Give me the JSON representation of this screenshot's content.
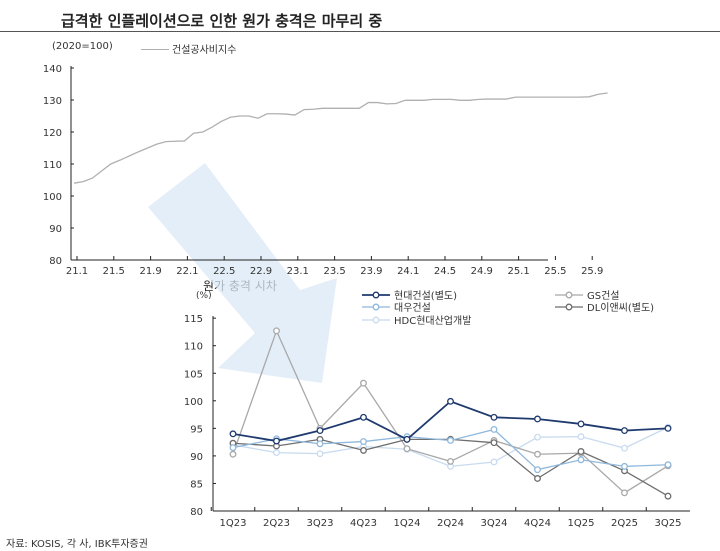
{
  "header": {
    "title": "급격한 인플레이션으로 인한 원가 충격은 마무리 중"
  },
  "source": "자료: KOSIS, 각 사, IBK투자증권",
  "chart_data": [
    {
      "type": "line",
      "ylabel": "(2020=100)",
      "ylim": [
        80,
        140
      ],
      "yticks": [
        80,
        90,
        100,
        110,
        120,
        130,
        140
      ],
      "xticks": [
        "21.1",
        "21.5",
        "21.9",
        "22.1",
        "22.5",
        "22.9",
        "23.1",
        "23.5",
        "23.9",
        "24.1",
        "24.5",
        "24.9",
        "25.1",
        "25.5",
        "25.9"
      ],
      "series": [
        {
          "name": "건설공사비지수",
          "color": "#b0b0b0",
          "values": [
            104.0,
            104.5,
            105.6,
            107.8,
            110.0,
            111.2,
            112.5,
            113.8,
            115.0,
            116.2,
            117.0,
            117.1,
            117.2,
            119.6,
            120.0,
            121.5,
            123.3,
            124.6,
            125.0,
            125.0,
            124.3,
            125.7,
            125.7,
            125.6,
            125.3,
            127.0,
            127.1,
            127.4,
            127.4,
            127.4,
            127.4,
            127.4,
            129.2,
            129.2,
            128.8,
            128.9,
            129.9,
            129.9,
            129.9,
            130.2,
            130.2,
            130.2,
            129.9,
            129.9,
            130.2,
            130.3,
            130.3,
            130.3,
            130.9,
            130.9,
            130.9,
            130.9,
            130.9,
            130.9,
            130.9,
            130.9,
            131.0,
            131.8,
            132.2
          ]
        }
      ]
    },
    {
      "type": "line",
      "title": "원가 충격 시차",
      "ylabel": "(%)",
      "ylim": [
        80,
        115
      ],
      "yticks": [
        80,
        85,
        90,
        95,
        100,
        105,
        110,
        115
      ],
      "categories": [
        "1Q23",
        "2Q23",
        "3Q23",
        "4Q23",
        "1Q24",
        "2Q24",
        "3Q24",
        "4Q24",
        "1Q25",
        "2Q25",
        "3Q25"
      ],
      "legend": "top",
      "series": [
        {
          "name": "현대건설(별도)",
          "color": "#1f3a6e",
          "values": [
            94.0,
            92.7,
            94.6,
            97.0,
            93.0,
            99.9,
            97.0,
            96.7,
            95.8,
            94.6,
            95.0
          ]
        },
        {
          "name": "GS건설",
          "color": "#a8a8a8",
          "values": [
            90.3,
            112.7,
            95.0,
            103.2,
            91.3,
            89.0,
            92.8,
            90.3,
            90.5,
            83.3,
            88.2
          ]
        },
        {
          "name": "대우건설",
          "color": "#8fb8dc",
          "values": [
            91.5,
            93.1,
            92.2,
            92.6,
            93.5,
            92.8,
            94.8,
            87.5,
            89.3,
            88.1,
            88.4
          ]
        },
        {
          "name": "DL이앤씨(별도)",
          "color": "#6e6e6e",
          "values": [
            92.3,
            91.8,
            93.0,
            91.0,
            93.0,
            93.0,
            92.4,
            85.9,
            90.8,
            87.3,
            82.7
          ]
        },
        {
          "name": "HDC현대산업개발",
          "color": "#c9dbef",
          "values": [
            92.0,
            90.6,
            90.4,
            91.7,
            91.2,
            88.1,
            88.9,
            93.4,
            93.5,
            91.4,
            95.2
          ]
        }
      ]
    }
  ]
}
